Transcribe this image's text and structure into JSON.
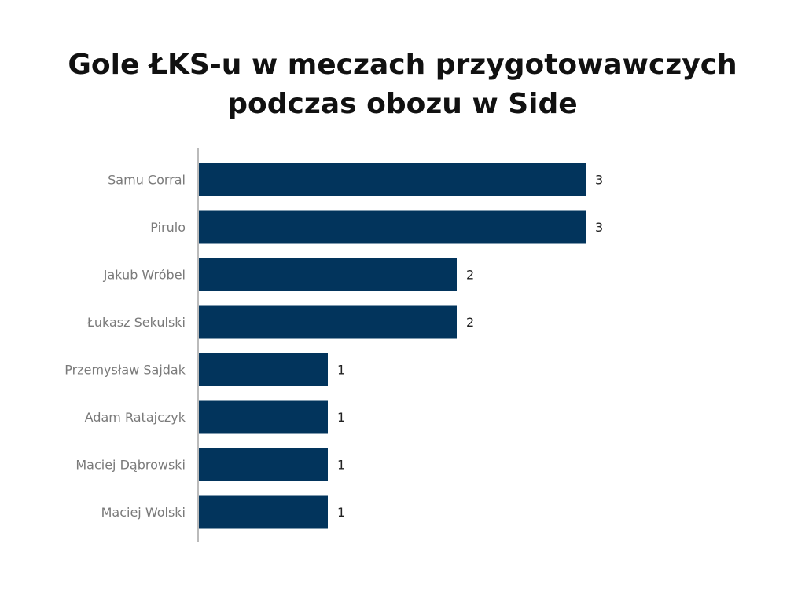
{
  "colors": {
    "bar": "#02345c",
    "axis": "#bbbbbb"
  },
  "chart_data": {
    "type": "bar",
    "orientation": "horizontal",
    "title": "Gole ŁKS-u w meczach przygotowawczych podczas obozu w Side",
    "xlabel": "",
    "ylabel": "",
    "grid": false,
    "legend": false,
    "xlim": [
      0,
      3
    ],
    "categories": [
      "Samu Corral",
      "Pirulo",
      "Jakub Wróbel",
      "Łukasz Sekulski",
      "Przemysław Sajdak",
      "Adam Ratajczyk",
      "Maciej Dąbrowski",
      "Maciej Wolski"
    ],
    "values": [
      3,
      3,
      2,
      2,
      1,
      1,
      1,
      1
    ]
  }
}
